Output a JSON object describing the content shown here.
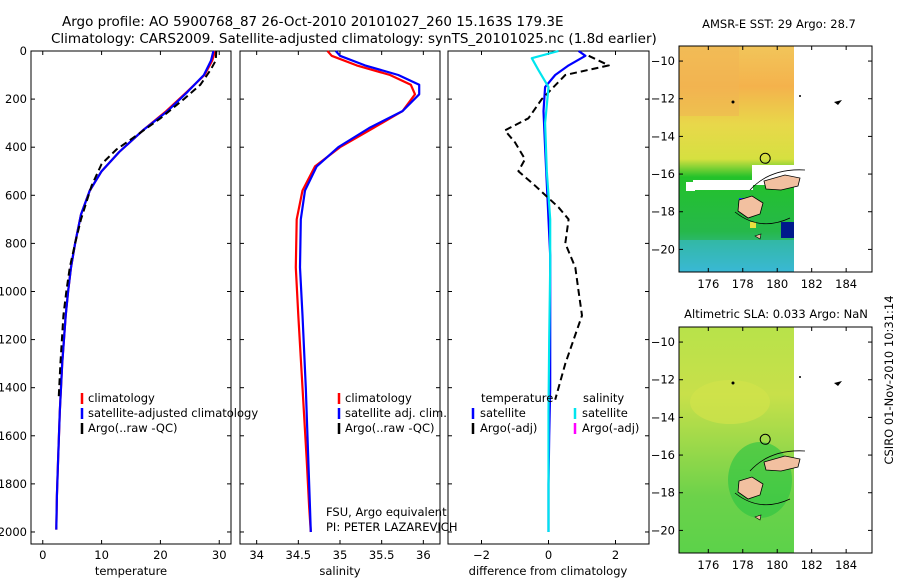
{
  "title_line1": "Argo profile: AO 5900768_87 26-Oct-2010 20101027_260 15.163S 179.3E",
  "title_line2": "Climatology: CARS2009. Satellite-adjusted climatology: synTS_20101025.nc (1.8d earlier)",
  "footer_stamp": "CSIRO 01-Nov-2010 10:31:14",
  "colors": {
    "climatology": "#ff0000",
    "satellite": "#0000ff",
    "argo": "#000000",
    "satellite_salinity": "#00e5ee",
    "argo_salinity": "#ff00ff"
  },
  "chart_data": [
    {
      "type": "line",
      "id": "temperature",
      "xlabel": "temperature",
      "xlim": [
        -2,
        32
      ],
      "ylim": [
        2050,
        0
      ],
      "xticks": [
        0,
        10,
        20,
        30
      ],
      "yticks": [
        0,
        200,
        400,
        600,
        800,
        1000,
        1200,
        1400,
        1600,
        1800,
        2000
      ],
      "legend": [
        "climatology",
        "satellite-adjusted climatology",
        "Argo(..raw -QC)"
      ],
      "series": [
        {
          "name": "climatology",
          "color": "#ff0000",
          "dash": false,
          "x": [
            29.3,
            28.8,
            27.5,
            24.5,
            21.0,
            17.0,
            13.0,
            10.0,
            8.0,
            6.5,
            5.5,
            4.8,
            4.3,
            3.9,
            3.3,
            2.9,
            2.6,
            2.4,
            2.3
          ],
          "y": [
            0,
            40,
            100,
            170,
            250,
            330,
            420,
            500,
            580,
            680,
            800,
            900,
            1000,
            1100,
            1300,
            1500,
            1700,
            1850,
            1990
          ]
        },
        {
          "name": "satellite-adjusted climatology",
          "color": "#0000ff",
          "dash": false,
          "x": [
            29.0,
            28.6,
            27.4,
            24.6,
            21.2,
            17.0,
            13.0,
            10.0,
            8.0,
            6.5,
            5.5,
            4.8,
            4.3,
            3.9,
            3.3,
            2.9,
            2.6,
            2.4,
            2.3
          ],
          "y": [
            0,
            40,
            100,
            170,
            250,
            330,
            420,
            500,
            580,
            680,
            800,
            900,
            1000,
            1100,
            1300,
            1500,
            1700,
            1850,
            1990
          ]
        },
        {
          "name": "Argo(..raw -QC)",
          "color": "#000000",
          "dash": true,
          "x": [
            29.5,
            29.4,
            28.5,
            26.8,
            24.0,
            20.0,
            16.0,
            12.5,
            10.0,
            8.3,
            6.5,
            5.5,
            4.6,
            4.0,
            3.5,
            3.0,
            2.7
          ],
          "y": [
            0,
            40,
            80,
            140,
            200,
            280,
            350,
            410,
            470,
            560,
            700,
            800,
            900,
            1000,
            1100,
            1300,
            1450
          ]
        }
      ]
    },
    {
      "type": "line",
      "id": "salinity",
      "xlabel": "salinity",
      "xlim": [
        33.8,
        36.2
      ],
      "ylim": [
        2050,
        0
      ],
      "xticks": [
        34,
        34.5,
        35,
        35.5,
        36
      ],
      "legend": [
        "climatology",
        "satellite adj. clim.",
        "Argo(..raw -QC)"
      ],
      "annotations": [
        "FSU, Argo equivalent",
        "PI: PETER LAZAREVICH"
      ],
      "series": [
        {
          "name": "climatology",
          "color": "#ff0000",
          "dash": false,
          "x": [
            34.85,
            34.9,
            35.2,
            35.6,
            35.85,
            35.9,
            35.75,
            35.4,
            35.0,
            34.7,
            34.55,
            34.48,
            34.47,
            34.5,
            34.55,
            34.6,
            34.63,
            34.65
          ],
          "y": [
            0,
            20,
            60,
            100,
            140,
            180,
            250,
            320,
            400,
            480,
            580,
            700,
            900,
            1100,
            1400,
            1700,
            1900,
            2000
          ]
        },
        {
          "name": "satellite adj. clim.",
          "color": "#0000ff",
          "dash": false,
          "x": [
            34.95,
            35.0,
            35.3,
            35.7,
            35.95,
            35.95,
            35.75,
            35.35,
            34.98,
            34.72,
            34.58,
            34.53,
            34.52,
            34.55,
            34.59,
            34.62,
            34.64,
            34.65
          ],
          "y": [
            0,
            20,
            60,
            100,
            140,
            180,
            250,
            320,
            400,
            480,
            580,
            700,
            900,
            1100,
            1400,
            1700,
            1900,
            2000
          ]
        }
      ]
    },
    {
      "type": "line",
      "id": "difference",
      "xlabel": "difference from climatology",
      "xlim": [
        -3,
        3
      ],
      "ylim": [
        2050,
        0
      ],
      "xticks": [
        -2,
        0,
        2
      ],
      "legend_temperature_title": "temperature",
      "legend_salinity_title": "salinity",
      "legend_temperature": [
        "satellite",
        "Argo(-adj)"
      ],
      "legend_salinity": [
        "satellite",
        "Argo(-adj)"
      ],
      "series": [
        {
          "name": "temperature satellite",
          "color": "#0000ff",
          "dash": false,
          "x": [
            0.9,
            1.1,
            0.6,
            0.2,
            -0.1,
            -0.15,
            -0.1,
            -0.05,
            0.0,
            0.05,
            0.05,
            0.05,
            0.05,
            0.02,
            0.0,
            0.0
          ],
          "y": [
            0,
            20,
            60,
            100,
            150,
            250,
            400,
            550,
            700,
            850,
            1000,
            1200,
            1400,
            1600,
            1800,
            2000
          ]
        },
        {
          "name": "temperature Argo(-adj)",
          "color": "#000000",
          "dash": true,
          "x": [
            1.2,
            1.8,
            0.5,
            -0.2,
            -0.6,
            -1.3,
            -1.0,
            -0.7,
            -0.9,
            -0.4,
            0.3,
            0.6,
            0.5,
            0.8,
            0.9,
            1.0,
            0.5,
            0.2
          ],
          "y": [
            20,
            60,
            100,
            200,
            280,
            330,
            380,
            450,
            500,
            560,
            650,
            700,
            800,
            900,
            1000,
            1100,
            1300,
            1450
          ]
        },
        {
          "name": "salinity satellite",
          "color": "#00e5ee",
          "dash": false,
          "x": [
            0.3,
            -0.5,
            -0.3,
            0.0,
            -0.1,
            -0.05,
            0.05,
            0.05,
            0.02,
            0.0,
            0.0,
            0.0
          ],
          "y": [
            0,
            30,
            80,
            150,
            300,
            500,
            700,
            900,
            1200,
            1500,
            1800,
            2000
          ]
        }
      ]
    },
    {
      "type": "heatmap",
      "id": "sst_map",
      "title": "AMSR-E SST: 29 Argo: 28.7",
      "xticks": [
        176,
        178,
        180,
        182,
        184
      ],
      "yticks": [
        -10,
        -12,
        -14,
        -16,
        -18,
        -20
      ],
      "xlim": [
        174.3,
        185.5
      ],
      "ylim": [
        -21.2,
        -9.2
      ],
      "marker": {
        "lon": 179.3,
        "lat": -15.163
      }
    },
    {
      "type": "heatmap",
      "id": "sla_map",
      "title": "Altimetric SLA: 0.033 Argo: NaN",
      "xticks": [
        176,
        178,
        180,
        182,
        184
      ],
      "yticks": [
        -10,
        -12,
        -14,
        -16,
        -18,
        -20
      ],
      "xlim": [
        174.3,
        185.5
      ],
      "ylim": [
        -21.2,
        -9.2
      ],
      "marker": {
        "lon": 179.3,
        "lat": -15.163
      }
    }
  ]
}
